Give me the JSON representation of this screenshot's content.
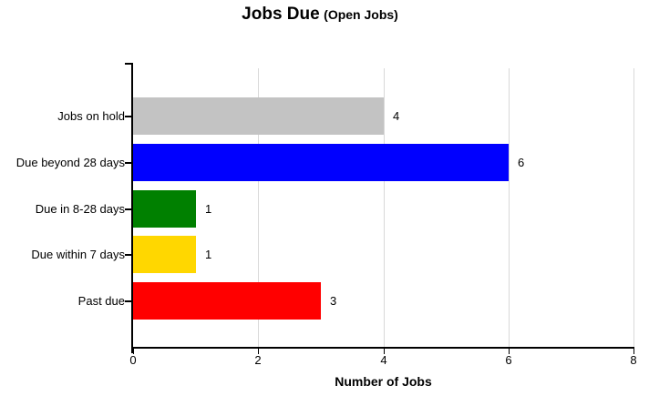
{
  "title": {
    "main": "Jobs Due",
    "sub": "(Open Jobs)"
  },
  "chart_data": {
    "type": "bar",
    "orientation": "horizontal",
    "title": "Jobs Due (Open Jobs)",
    "categories": [
      "Jobs on hold",
      "Due beyond 28 days",
      "Due in 8-28 days",
      "Due within 7 days",
      "Past due"
    ],
    "values": [
      4,
      6,
      1,
      1,
      3
    ],
    "value_labels": [
      "4",
      "6",
      "1",
      "1",
      "3"
    ],
    "bar_colors": [
      "#c3c3c3",
      "#0000ff",
      "#008000",
      "#ffd700",
      "#ff0000"
    ],
    "xlabel": "Number of Jobs",
    "ylabel": "",
    "xlim": [
      0,
      8
    ],
    "xticks": [
      0,
      2,
      4,
      6,
      8
    ],
    "grid": "vertical-gridlines-on",
    "legend": "none"
  },
  "colors": {
    "background": "#ffffff",
    "gridline": "#d9d9d9",
    "axis": "#000000",
    "text": "#000000"
  }
}
